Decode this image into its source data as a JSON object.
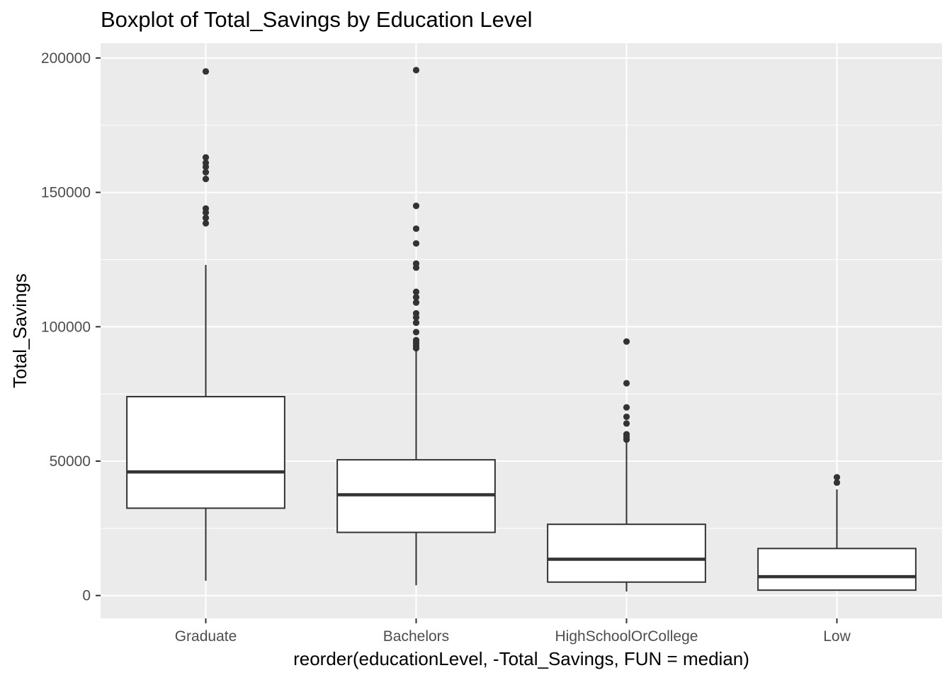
{
  "chart_data": {
    "type": "boxplot",
    "title": "Boxplot of Total_Savings by Education Level",
    "xlabel": "reorder(educationLevel, -Total_Savings, FUN = median)",
    "ylabel": "Total_Savings",
    "ylim": [
      -8500,
      205500
    ],
    "yticks": [
      0,
      50000,
      100000,
      150000,
      200000
    ],
    "ytick_labels": [
      "0",
      "50000",
      "100000",
      "150000",
      "200000"
    ],
    "grid": true,
    "background": "#EBEBEB",
    "grid_major_color": "#FFFFFF",
    "box_fill": "#FFFFFF",
    "box_line": "#333333",
    "categories": [
      "Graduate",
      "Bachelors",
      "HighSchoolOrCollege",
      "Low"
    ],
    "boxes": [
      {
        "category": "Graduate",
        "whisker_low": 5500,
        "q1": 32500,
        "median": 46000,
        "q3": 74000,
        "whisker_high": 123000,
        "outliers": [
          138500,
          140500,
          142500,
          144000,
          155000,
          157500,
          159500,
          161000,
          163000,
          195000
        ]
      },
      {
        "category": "Bachelors",
        "whisker_low": 3800,
        "q1": 23500,
        "median": 37500,
        "q3": 50500,
        "whisker_high": 91500,
        "outliers": [
          92000,
          93000,
          94000,
          95000,
          98000,
          101500,
          103500,
          105000,
          109000,
          111000,
          113000,
          122000,
          123500,
          131000,
          136500,
          145000,
          195500
        ]
      },
      {
        "category": "HighSchoolOrCollege",
        "whisker_low": 1500,
        "q1": 5000,
        "median": 13500,
        "q3": 26500,
        "whisker_high": 57500,
        "outliers": [
          58000,
          59000,
          60000,
          64000,
          66500,
          70000,
          79000,
          94500
        ]
      },
      {
        "category": "Low",
        "whisker_low": 2000,
        "q1": 2000,
        "median": 7000,
        "q3": 17500,
        "whisker_high": 39500,
        "outliers": [
          42000,
          44000
        ]
      }
    ]
  }
}
